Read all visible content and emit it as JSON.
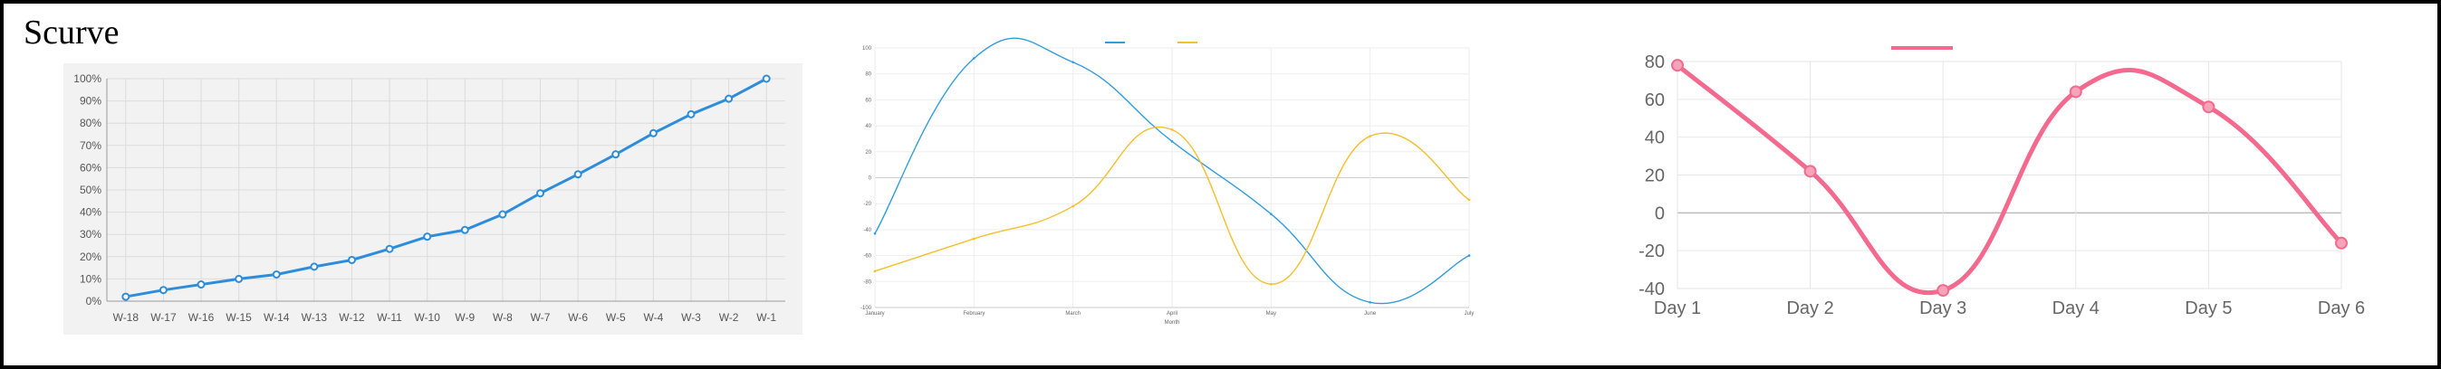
{
  "page": {
    "title": "Scurve"
  },
  "chart_data": [
    {
      "type": "line",
      "categories": [
        "W-18",
        "W-17",
        "W-16",
        "W-15",
        "W-14",
        "W-13",
        "W-12",
        "W-11",
        "W-10",
        "W-9",
        "W-8",
        "W-7",
        "W-6",
        "W-5",
        "W-4",
        "W-3",
        "W-2",
        "W-1"
      ],
      "series": [
        {
          "values": [
            2,
            5,
            7.5,
            10,
            12,
            15.5,
            18.5,
            23.5,
            29,
            32,
            39,
            48.5,
            57,
            66,
            75.5,
            84,
            91,
            100
          ]
        }
      ],
      "yticks": [
        "0%",
        "10%",
        "20%",
        "30%",
        "40%",
        "50%",
        "60%",
        "70%",
        "80%",
        "90%",
        "100%"
      ],
      "ylim": [
        0,
        100
      ],
      "grid": true,
      "colors": {
        "line": "#2e8ddb",
        "background": "#f2f2f2",
        "grid": "#dcdcdc"
      }
    },
    {
      "type": "line",
      "categories": [
        "January",
        "February",
        "March",
        "April",
        "May",
        "June",
        "July"
      ],
      "series": [
        {
          "values": [
            -43,
            92,
            89,
            28,
            -28,
            -96,
            -60
          ],
          "color": "#2f9de0"
        },
        {
          "values": [
            -72,
            -47,
            -22,
            37,
            -82,
            32,
            -17
          ],
          "color": "#f7be2d"
        }
      ],
      "yticks": [
        "100",
        "80",
        "60",
        "40",
        "20",
        "0",
        "-20",
        "-40",
        "-60",
        "-80",
        "-100"
      ],
      "xlabel": "Month",
      "ylim": [
        -100,
        100
      ],
      "legend": "top-center",
      "grid": true
    },
    {
      "type": "line",
      "categories": [
        "Day 1",
        "Day 2",
        "Day 3",
        "Day 4",
        "Day 5",
        "Day 6"
      ],
      "series": [
        {
          "values": [
            78,
            22,
            -41,
            64,
            56,
            -16
          ],
          "color": "#f46a8e"
        }
      ],
      "yticks": [
        "80",
        "60",
        "40",
        "20",
        "0",
        "-20",
        "-40"
      ],
      "ylim": [
        -40,
        80
      ],
      "legend": "top-center",
      "grid": true
    }
  ]
}
